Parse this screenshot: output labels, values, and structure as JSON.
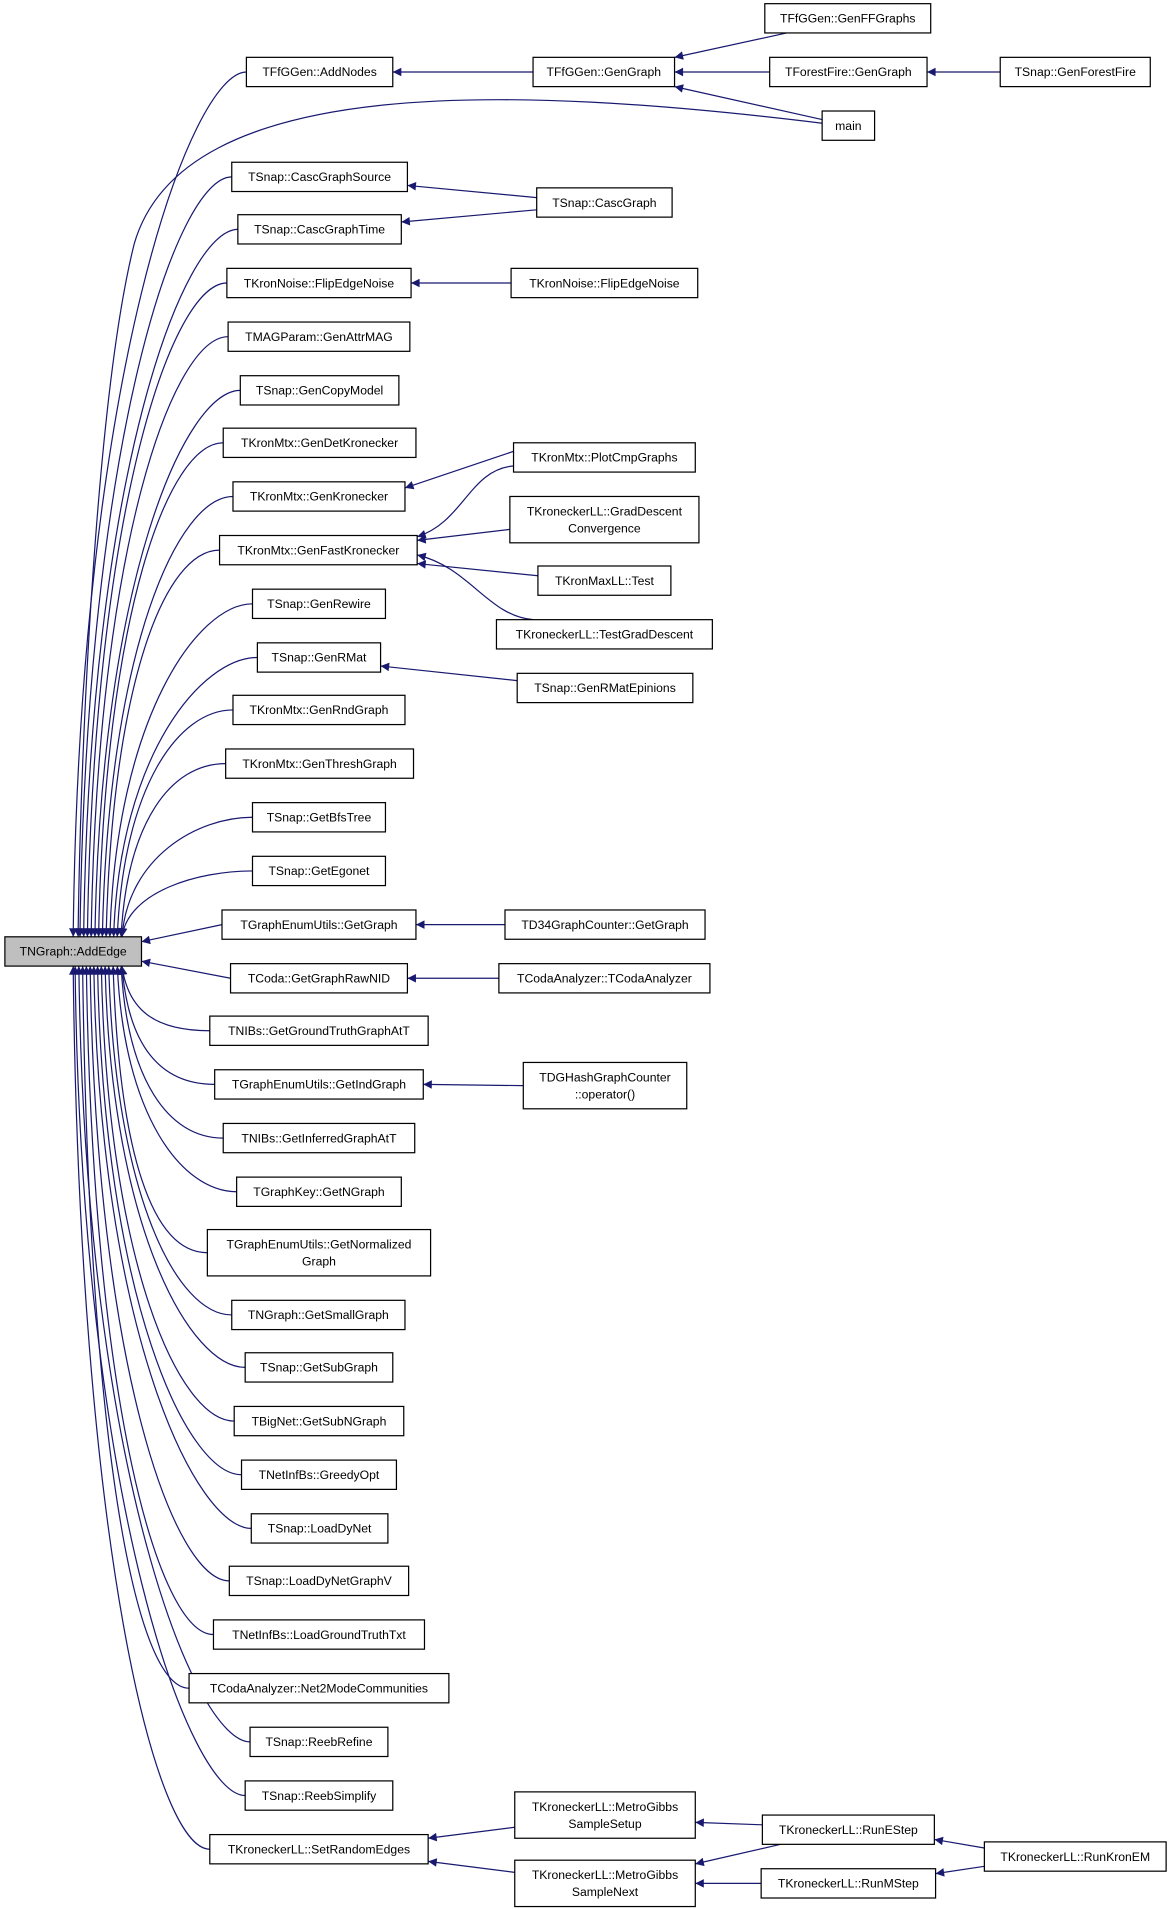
{
  "graph": {
    "kind": "caller-graph",
    "edge_color": "#191970",
    "root_fill": "#bfbfbf",
    "nodes": [
      {
        "id": "root",
        "lines": [
          "TNGraph::AddEdge"
        ],
        "root": true
      },
      {
        "id": "addnodes",
        "lines": [
          "TFfGGen::AddNodes"
        ]
      },
      {
        "id": "cascsrc",
        "lines": [
          "TSnap::CascGraphSource"
        ]
      },
      {
        "id": "casctime",
        "lines": [
          "TSnap::CascGraphTime"
        ]
      },
      {
        "id": "flip1",
        "lines": [
          "TKronNoise::FlipEdgeNoise"
        ]
      },
      {
        "id": "genattrmag",
        "lines": [
          "TMAGParam::GenAttrMAG"
        ]
      },
      {
        "id": "gencopy",
        "lines": [
          "TSnap::GenCopyModel"
        ]
      },
      {
        "id": "gendetkron",
        "lines": [
          "TKronMtx::GenDetKronecker"
        ]
      },
      {
        "id": "genkron",
        "lines": [
          "TKronMtx::GenKronecker"
        ]
      },
      {
        "id": "genfastkron",
        "lines": [
          "TKronMtx::GenFastKronecker"
        ]
      },
      {
        "id": "genrewire",
        "lines": [
          "TSnap::GenRewire"
        ]
      },
      {
        "id": "genrmat",
        "lines": [
          "TSnap::GenRMat"
        ]
      },
      {
        "id": "genrnd",
        "lines": [
          "TKronMtx::GenRndGraph"
        ]
      },
      {
        "id": "genthresh",
        "lines": [
          "TKronMtx::GenThreshGraph"
        ]
      },
      {
        "id": "getbfs",
        "lines": [
          "TSnap::GetBfsTree"
        ]
      },
      {
        "id": "getegonet",
        "lines": [
          "TSnap::GetEgonet"
        ]
      },
      {
        "id": "geugetgraph",
        "lines": [
          "TGraphEnumUtils::GetGraph"
        ]
      },
      {
        "id": "codaraw",
        "lines": [
          "TCoda::GetGraphRawNID"
        ]
      },
      {
        "id": "nibsgt",
        "lines": [
          "TNIBs::GetGroundTruthGraphAtT"
        ]
      },
      {
        "id": "geuind",
        "lines": [
          "TGraphEnumUtils::GetIndGraph"
        ]
      },
      {
        "id": "nibsinf",
        "lines": [
          "TNIBs::GetInferredGraphAtT"
        ]
      },
      {
        "id": "gkngraph",
        "lines": [
          "TGraphKey::GetNGraph"
        ]
      },
      {
        "id": "geunorm",
        "lines": [
          "TGraphEnumUtils::GetNormalized",
          "Graph"
        ]
      },
      {
        "id": "small",
        "lines": [
          "TNGraph::GetSmallGraph"
        ]
      },
      {
        "id": "subgraph",
        "lines": [
          "TSnap::GetSubGraph"
        ]
      },
      {
        "id": "bigsub",
        "lines": [
          "TBigNet::GetSubNGraph"
        ]
      },
      {
        "id": "greedy",
        "lines": [
          "TNetInfBs::GreedyOpt"
        ]
      },
      {
        "id": "loaddy",
        "lines": [
          "TSnap::LoadDyNet"
        ]
      },
      {
        "id": "loaddyv",
        "lines": [
          "TSnap::LoadDyNetGraphV"
        ]
      },
      {
        "id": "loadgt",
        "lines": [
          "TNetInfBs::LoadGroundTruthTxt"
        ]
      },
      {
        "id": "net2mode",
        "lines": [
          "TCodaAnalyzer::Net2ModeCommunities"
        ]
      },
      {
        "id": "reebref",
        "lines": [
          "TSnap::ReebRefine"
        ]
      },
      {
        "id": "reebsimp",
        "lines": [
          "TSnap::ReebSimplify"
        ]
      },
      {
        "id": "setrand",
        "lines": [
          "TKroneckerLL::SetRandomEdges"
        ]
      },
      {
        "id": "ffgengraph",
        "lines": [
          "TFfGGen::GenGraph"
        ]
      },
      {
        "id": "main",
        "lines": [
          "main"
        ]
      },
      {
        "id": "cascgraph",
        "lines": [
          "TSnap::CascGraph"
        ]
      },
      {
        "id": "flip2",
        "lines": [
          "TKronNoise::FlipEdgeNoise"
        ]
      },
      {
        "id": "plotcmp",
        "lines": [
          "TKronMtx::PlotCmpGraphs"
        ]
      },
      {
        "id": "graddesc",
        "lines": [
          "TKroneckerLL::GradDescent",
          "Convergence"
        ]
      },
      {
        "id": "maxlltest",
        "lines": [
          "TKronMaxLL::Test"
        ]
      },
      {
        "id": "testgrad",
        "lines": [
          "TKroneckerLL::TestGradDescent"
        ]
      },
      {
        "id": "rmatepin",
        "lines": [
          "TSnap::GenRMatEpinions"
        ]
      },
      {
        "id": "d34",
        "lines": [
          "TD34GraphCounter::GetGraph"
        ]
      },
      {
        "id": "codaanalyzer",
        "lines": [
          "TCodaAnalyzer::TCodaAnalyzer"
        ]
      },
      {
        "id": "dghash",
        "lines": [
          "TDGHashGraphCounter",
          "::operator()"
        ]
      },
      {
        "id": "mgsetup",
        "lines": [
          "TKroneckerLL::MetroGibbs",
          "SampleSetup"
        ]
      },
      {
        "id": "mgnext",
        "lines": [
          "TKroneckerLL::MetroGibbs",
          "SampleNext"
        ]
      },
      {
        "id": "genffgraphs",
        "lines": [
          "TFfGGen::GenFFGraphs"
        ]
      },
      {
        "id": "ffgraph",
        "lines": [
          "TForestFire::GenGraph"
        ]
      },
      {
        "id": "runestep",
        "lines": [
          "TKroneckerLL::RunEStep"
        ]
      },
      {
        "id": "runmstep",
        "lines": [
          "TKroneckerLL::RunMStep"
        ]
      },
      {
        "id": "genforestfire",
        "lines": [
          "TSnap::GenForestFire"
        ]
      },
      {
        "id": "runkronem",
        "lines": [
          "TKroneckerLL::RunKronEM"
        ]
      }
    ],
    "edges": [
      [
        "addnodes",
        "root"
      ],
      [
        "main",
        "root"
      ],
      [
        "cascsrc",
        "root"
      ],
      [
        "casctime",
        "root"
      ],
      [
        "flip1",
        "root"
      ],
      [
        "genattrmag",
        "root"
      ],
      [
        "gencopy",
        "root"
      ],
      [
        "gendetkron",
        "root"
      ],
      [
        "genkron",
        "root"
      ],
      [
        "genfastkron",
        "root"
      ],
      [
        "genrewire",
        "root"
      ],
      [
        "genrmat",
        "root"
      ],
      [
        "genrnd",
        "root"
      ],
      [
        "genthresh",
        "root"
      ],
      [
        "getbfs",
        "root"
      ],
      [
        "getegonet",
        "root"
      ],
      [
        "geugetgraph",
        "root"
      ],
      [
        "codaraw",
        "root"
      ],
      [
        "nibsgt",
        "root"
      ],
      [
        "geuind",
        "root"
      ],
      [
        "nibsinf",
        "root"
      ],
      [
        "gkngraph",
        "root"
      ],
      [
        "geunorm",
        "root"
      ],
      [
        "small",
        "root"
      ],
      [
        "subgraph",
        "root"
      ],
      [
        "bigsub",
        "root"
      ],
      [
        "greedy",
        "root"
      ],
      [
        "loaddy",
        "root"
      ],
      [
        "loaddyv",
        "root"
      ],
      [
        "loadgt",
        "root"
      ],
      [
        "net2mode",
        "root"
      ],
      [
        "reebref",
        "root"
      ],
      [
        "reebsimp",
        "root"
      ],
      [
        "setrand",
        "root"
      ],
      [
        "ffgengraph",
        "addnodes"
      ],
      [
        "genffgraphs",
        "ffgengraph"
      ],
      [
        "ffgraph",
        "ffgengraph"
      ],
      [
        "main",
        "ffgengraph"
      ],
      [
        "genforestfire",
        "ffgraph"
      ],
      [
        "cascgraph",
        "cascsrc"
      ],
      [
        "cascgraph",
        "casctime"
      ],
      [
        "flip2",
        "flip1"
      ],
      [
        "plotcmp",
        "genkron"
      ],
      [
        "plotcmp",
        "genfastkron"
      ],
      [
        "graddesc",
        "genfastkron"
      ],
      [
        "maxlltest",
        "genfastkron"
      ],
      [
        "testgrad",
        "genfastkron"
      ],
      [
        "rmatepin",
        "genrmat"
      ],
      [
        "d34",
        "geugetgraph"
      ],
      [
        "codaanalyzer",
        "codaraw"
      ],
      [
        "dghash",
        "geuind"
      ],
      [
        "mgsetup",
        "setrand"
      ],
      [
        "mgnext",
        "setrand"
      ],
      [
        "runestep",
        "mgsetup"
      ],
      [
        "runestep",
        "mgnext"
      ],
      [
        "runmstep",
        "mgnext"
      ],
      [
        "runkronem",
        "runestep"
      ],
      [
        "runkronem",
        "runmstep"
      ]
    ]
  }
}
